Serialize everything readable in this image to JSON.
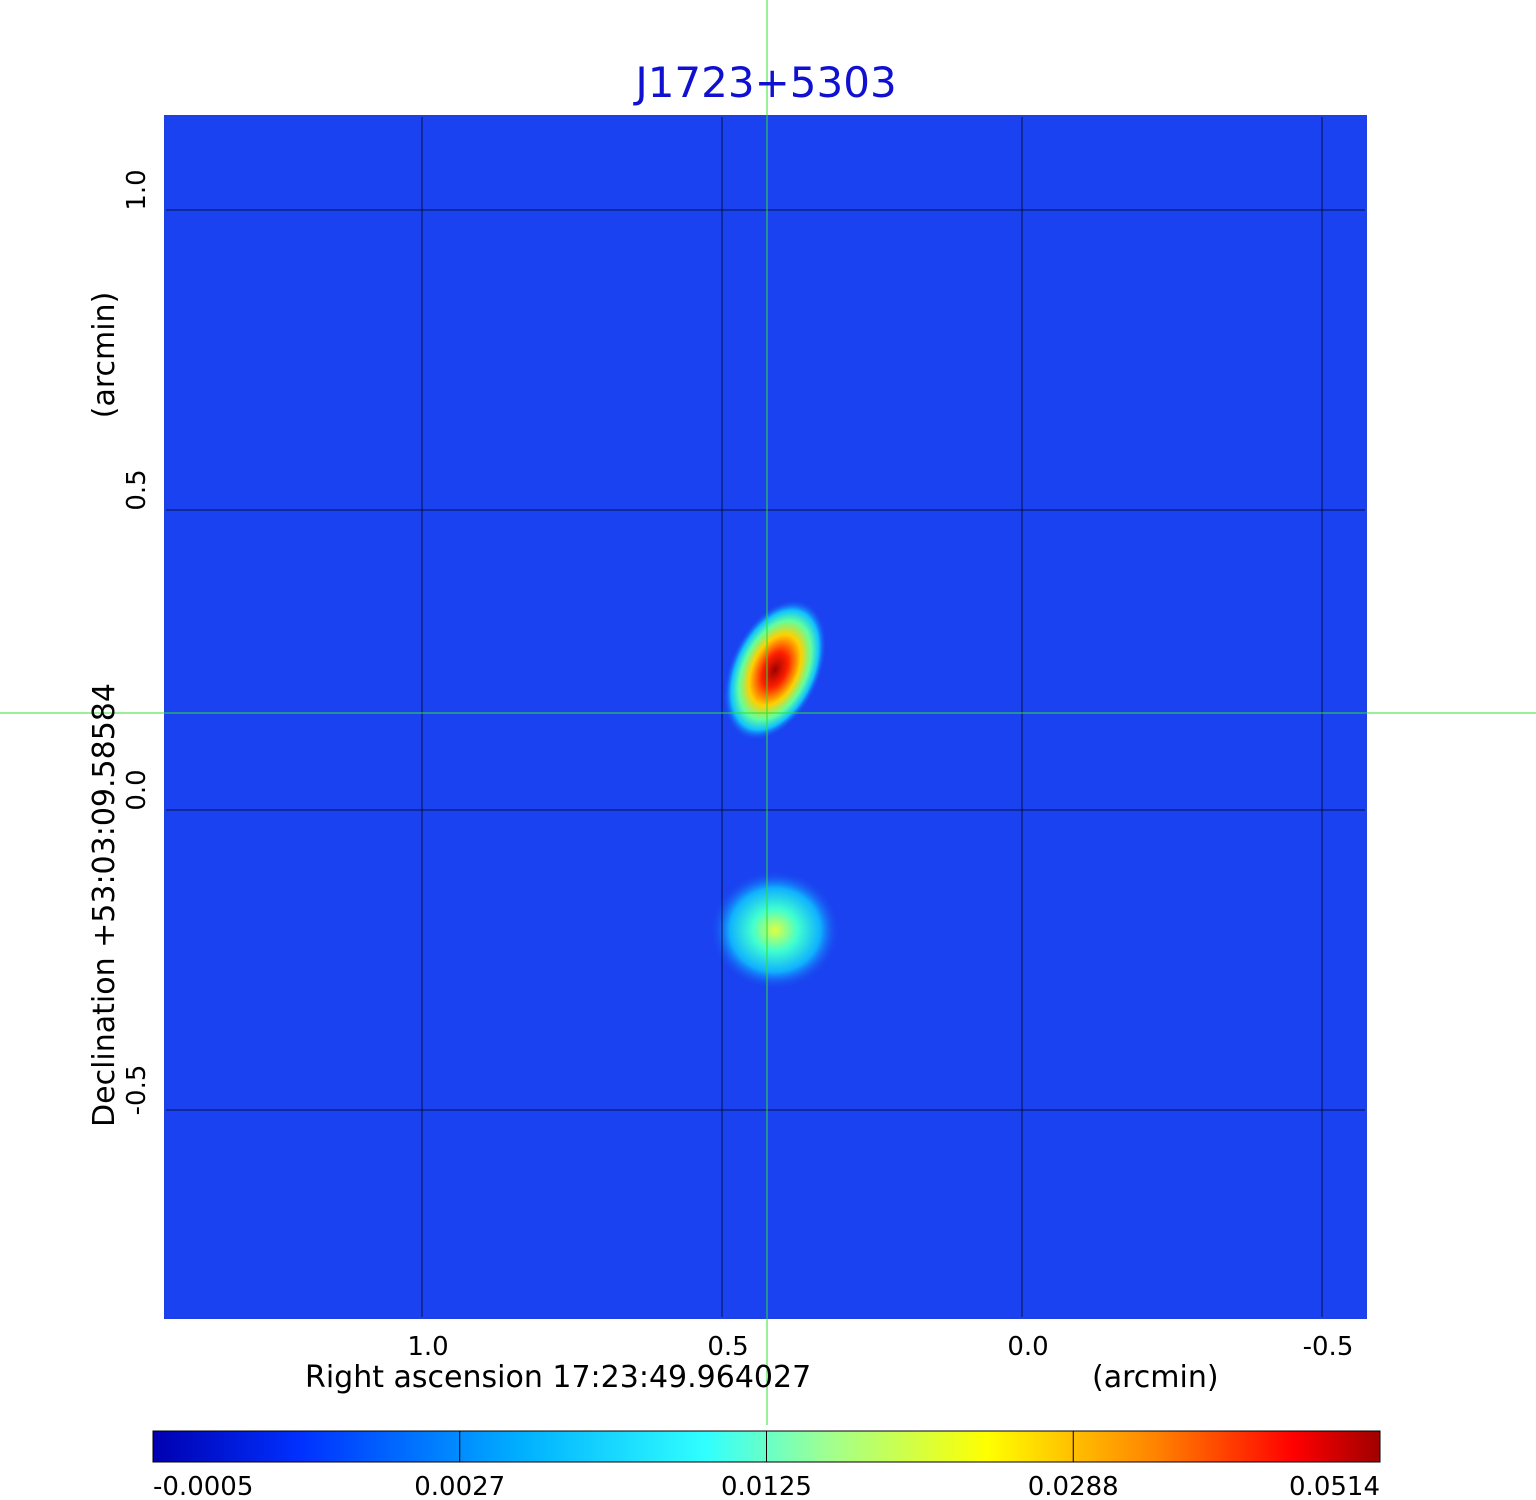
{
  "title": "J1723+5303",
  "x_axis": {
    "label": "Right ascension  17:23:49.964027",
    "unit": "(arcmin)",
    "ticks": [
      {
        "value": 1,
        "label": "1.0"
      },
      {
        "value": 0.5,
        "label": "0.5"
      },
      {
        "value": 0,
        "label": "0.0"
      },
      {
        "value": -0.5,
        "label": "-0.5"
      }
    ]
  },
  "y_axis": {
    "label": "Declination  +53:03:09.58584",
    "unit": "(arcmin)",
    "ticks": [
      {
        "value": 1,
        "label": "1.0"
      },
      {
        "value": 0.5,
        "label": "0.5"
      },
      {
        "value": 0,
        "label": "0.0"
      },
      {
        "value": -0.5,
        "label": "-0.5"
      }
    ]
  },
  "colorbar": {
    "ticks": [
      -0.0005,
      0.0027,
      0.0125,
      0.0288,
      0.0514
    ]
  }
}
